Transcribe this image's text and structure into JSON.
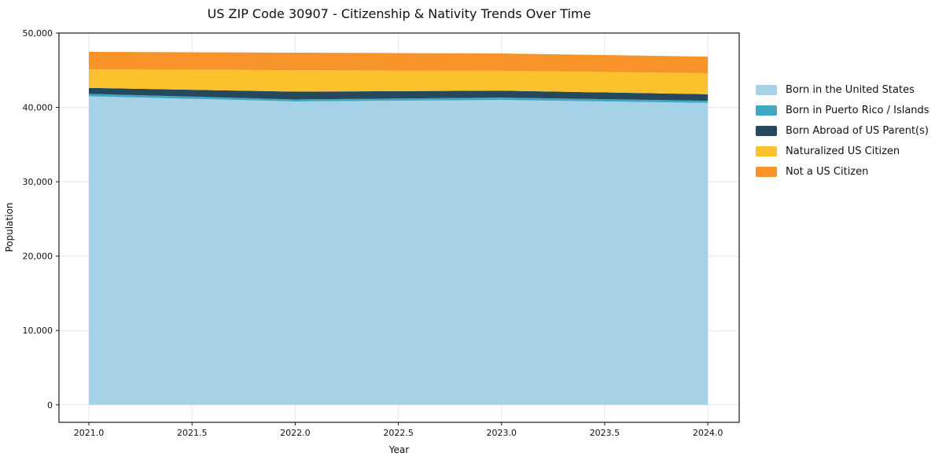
{
  "chart_data": {
    "type": "area",
    "stacked": true,
    "title": "US ZIP Code 30907 - Citizenship & Nativity Trends Over Time",
    "xlabel": "Year",
    "ylabel": "Population",
    "x": [
      2021,
      2022,
      2023,
      2024
    ],
    "series": [
      {
        "name": "Born in the United States",
        "color": "#a6d2e7",
        "values": [
          41500,
          40800,
          41000,
          40600
        ]
      },
      {
        "name": "Born in Puerto Rico / Islands",
        "color": "#43a7c3",
        "values": [
          320,
          270,
          320,
          290
        ]
      },
      {
        "name": "Born Abroad of US Parent(s)",
        "color": "#24485c",
        "values": [
          800,
          1050,
          930,
          880
        ]
      },
      {
        "name": "Naturalized US Citizen",
        "color": "#fcc22d",
        "values": [
          2500,
          2900,
          2680,
          2830
        ]
      },
      {
        "name": "Not a US Citizen",
        "color": "#f79328",
        "values": [
          2350,
          2340,
          2320,
          2230
        ]
      }
    ],
    "xticks": {
      "values": [
        2021.0,
        2021.5,
        2022.0,
        2022.5,
        2023.0,
        2023.5,
        2024.0
      ],
      "labels": [
        "2021.0",
        "2021.5",
        "2022.0",
        "2022.5",
        "2023.0",
        "2023.5",
        "2024.0"
      ]
    },
    "yticks": {
      "values": [
        0,
        10000,
        20000,
        30000,
        40000,
        50000
      ],
      "labels": [
        "0",
        "10,000",
        "20,000",
        "30,000",
        "40,000",
        "50,000"
      ]
    },
    "xlim": [
      2020.855,
      2024.152
    ],
    "ylim": [
      -2350,
      50000
    ],
    "grid": true,
    "grid_color": "#e7e7e7",
    "spine_color": "#1a1a1a",
    "legend_position": "right-outside"
  }
}
